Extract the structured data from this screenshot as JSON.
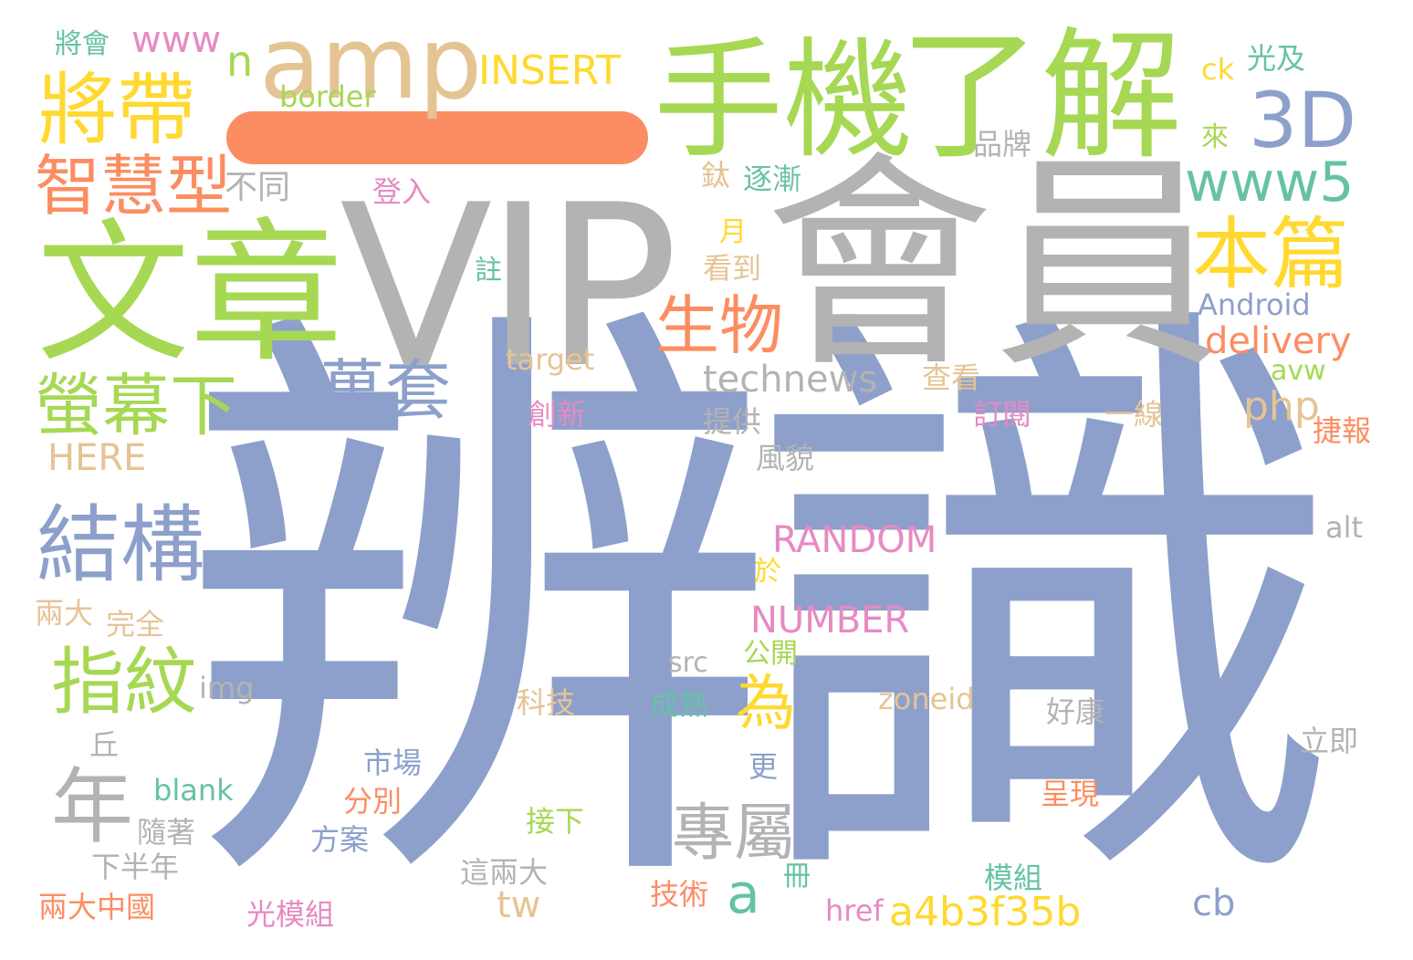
{
  "words": [
    {
      "id": "bianshi",
      "text": "辨識",
      "color": "#8da0cb"
    },
    {
      "id": "huiyuan",
      "text": "會員",
      "color": "#b3b3b3"
    },
    {
      "id": "vip",
      "text": "VIP",
      "color": "#b3b3b3"
    },
    {
      "id": "wenzhang",
      "text": "文章",
      "color": "#a6d854"
    },
    {
      "id": "shouji",
      "text": "手機",
      "color": "#a6d854"
    },
    {
      "id": "liaojie",
      "text": "了解",
      "color": "#a6d854"
    },
    {
      "id": "yi",
      "text": "一",
      "color": "#fc8d62"
    },
    {
      "id": "amp",
      "text": "amp",
      "color": "#e5c494"
    },
    {
      "id": "jiangdai",
      "text": "將帶",
      "color": "#ffd92f"
    },
    {
      "id": "3d",
      "text": "3D",
      "color": "#8da0cb"
    },
    {
      "id": "zhihuixing",
      "text": "智慧型",
      "color": "#fc8d62"
    },
    {
      "id": "www5",
      "text": "www5",
      "color": "#66c2a5"
    },
    {
      "id": "benpian",
      "text": "本篇",
      "color": "#ffd92f"
    },
    {
      "id": "shengwu",
      "text": "生物",
      "color": "#fc8d62"
    },
    {
      "id": "yingmuxia",
      "text": "螢幕下",
      "color": "#a6d854"
    },
    {
      "id": "wantao",
      "text": "萬套",
      "color": "#8da0cb"
    },
    {
      "id": "jiegou",
      "text": "結構",
      "color": "#8da0cb"
    },
    {
      "id": "zhiwen",
      "text": "指紋",
      "color": "#a6d854"
    },
    {
      "id": "nian",
      "text": "年",
      "color": "#b3b3b3"
    },
    {
      "id": "wei",
      "text": "為",
      "color": "#ffd92f"
    },
    {
      "id": "zhuanshu",
      "text": "專屬",
      "color": "#b3b3b3"
    },
    {
      "id": "a",
      "text": "a",
      "color": "#66c2a5"
    },
    {
      "id": "a4b3f35b",
      "text": "a4b3f35b",
      "color": "#ffd92f"
    },
    {
      "id": "insert",
      "text": "INSERT",
      "color": "#ffd92f"
    },
    {
      "id": "jianghui",
      "text": "將會",
      "color": "#66c2a5"
    },
    {
      "id": "www",
      "text": "www",
      "color": "#e78ac3"
    },
    {
      "id": "n",
      "text": "n",
      "color": "#a6d854"
    },
    {
      "id": "border",
      "text": "border",
      "color": "#a6d854"
    },
    {
      "id": "butong",
      "text": "不同",
      "color": "#b3b3b3"
    },
    {
      "id": "dengru",
      "text": "登入",
      "color": "#e78ac3"
    },
    {
      "id": "tai",
      "text": "鈦",
      "color": "#e5c494"
    },
    {
      "id": "zhujian",
      "text": "逐漸",
      "color": "#66c2a5"
    },
    {
      "id": "pinpai",
      "text": "品牌",
      "color": "#b3b3b3"
    },
    {
      "id": "ck",
      "text": "ck",
      "color": "#ffd92f"
    },
    {
      "id": "guangji",
      "text": "光及",
      "color": "#66c2a5"
    },
    {
      "id": "lai",
      "text": "來",
      "color": "#a6d854"
    },
    {
      "id": "yue",
      "text": "月",
      "color": "#ffd92f"
    },
    {
      "id": "kandao",
      "text": "看到",
      "color": "#e5c494"
    },
    {
      "id": "zhu",
      "text": "註",
      "color": "#66c2a5"
    },
    {
      "id": "android",
      "text": "Android",
      "color": "#8da0cb"
    },
    {
      "id": "delivery",
      "text": "delivery",
      "color": "#fc8d62"
    },
    {
      "id": "target",
      "text": "target",
      "color": "#e5c494"
    },
    {
      "id": "technews",
      "text": "technews",
      "color": "#b3b3b3"
    },
    {
      "id": "chakan",
      "text": "查看",
      "color": "#e5c494"
    },
    {
      "id": "avw",
      "text": "avw",
      "color": "#a6d854"
    },
    {
      "id": "php",
      "text": "php",
      "color": "#e5c494"
    },
    {
      "id": "here",
      "text": "HERE",
      "color": "#e5c494"
    },
    {
      "id": "chuangxin",
      "text": "創新",
      "color": "#e78ac3"
    },
    {
      "id": "tigong",
      "text": "提供",
      "color": "#b3b3b3"
    },
    {
      "id": "dingyue",
      "text": "訂閱",
      "color": "#e78ac3"
    },
    {
      "id": "yixian",
      "text": "一線",
      "color": "#e5c494"
    },
    {
      "id": "jiebao",
      "text": "捷報",
      "color": "#fc8d62"
    },
    {
      "id": "fengmao",
      "text": "風貌",
      "color": "#b3b3b3"
    },
    {
      "id": "random",
      "text": "RANDOM",
      "color": "#e78ac3"
    },
    {
      "id": "alt",
      "text": "alt",
      "color": "#b3b3b3"
    },
    {
      "id": "yu",
      "text": "於",
      "color": "#ffd92f"
    },
    {
      "id": "liangda",
      "text": "兩大",
      "color": "#e5c494"
    },
    {
      "id": "wanquan",
      "text": "完全",
      "color": "#e5c494"
    },
    {
      "id": "number",
      "text": "NUMBER",
      "color": "#e78ac3"
    },
    {
      "id": "gongkai",
      "text": "公開",
      "color": "#a6d854"
    },
    {
      "id": "src",
      "text": "src",
      "color": "#b3b3b3"
    },
    {
      "id": "img",
      "text": "img",
      "color": "#b3b3b3"
    },
    {
      "id": "keji",
      "text": "科技",
      "color": "#e5c494"
    },
    {
      "id": "chengshu",
      "text": "成熟",
      "color": "#66c2a5"
    },
    {
      "id": "zoneid",
      "text": "zoneid",
      "color": "#e5c494"
    },
    {
      "id": "haokang",
      "text": "好康",
      "color": "#b3b3b3"
    },
    {
      "id": "liji",
      "text": "立即",
      "color": "#b3b3b3"
    },
    {
      "id": "qiu",
      "text": "丘",
      "color": "#b3b3b3"
    },
    {
      "id": "shichang",
      "text": "市場",
      "color": "#8da0cb"
    },
    {
      "id": "geng",
      "text": "更",
      "color": "#8da0cb"
    },
    {
      "id": "blank",
      "text": "blank",
      "color": "#66c2a5"
    },
    {
      "id": "fenbie",
      "text": "分別",
      "color": "#fc8d62"
    },
    {
      "id": "chengxian",
      "text": "呈現",
      "color": "#fc8d62"
    },
    {
      "id": "suizhe",
      "text": "隨著",
      "color": "#b3b3b3"
    },
    {
      "id": "fangan",
      "text": "方案",
      "color": "#8da0cb"
    },
    {
      "id": "jiexia",
      "text": "接下",
      "color": "#a6d854"
    },
    {
      "id": "xiabannian",
      "text": "下半年",
      "color": "#b3b3b3"
    },
    {
      "id": "zheliangda",
      "text": "這兩大",
      "color": "#b3b3b3"
    },
    {
      "id": "ce",
      "text": "冊",
      "color": "#66c2a5"
    },
    {
      "id": "mozu",
      "text": "模組",
      "color": "#66c2a5"
    },
    {
      "id": "tw",
      "text": "tw",
      "color": "#e5c494"
    },
    {
      "id": "cb",
      "text": "cb",
      "color": "#8da0cb"
    },
    {
      "id": "liangdazhongguo",
      "text": "兩大中國",
      "color": "#fc8d62"
    },
    {
      "id": "guangmozu",
      "text": "光模組",
      "color": "#e78ac3"
    },
    {
      "id": "jishu",
      "text": "技術",
      "color": "#fc8d62"
    },
    {
      "id": "href",
      "text": "href",
      "color": "#e78ac3"
    }
  ]
}
